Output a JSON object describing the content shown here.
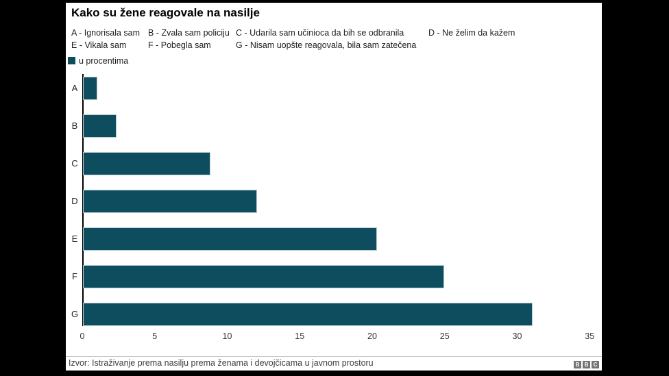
{
  "title": "Kako su žene reagovale na nasilje",
  "legend": {
    "rows": [
      [
        "A - Ignorisala sam",
        "B - Zvala sam policiju",
        "C - Udarila sam učinioca da bih se odbranila",
        "D - Ne želim da kažem"
      ],
      [
        "E - Vikala sam",
        "F - Pobegla sam",
        "G - Nisam uopšte reagovala, bila sam zatečena"
      ]
    ],
    "key_label": "u procentima"
  },
  "chart_data": {
    "type": "bar",
    "orientation": "horizontal",
    "title": "Kako su žene reagovale na nasilje",
    "unit_label": "u procentima",
    "categories": [
      "A",
      "B",
      "C",
      "D",
      "E",
      "F",
      "G"
    ],
    "category_descriptions": {
      "A": "Ignorisala sam",
      "B": "Zvala sam policiju",
      "C": "Udarila sam učinioca da bih se odbranila",
      "D": "Ne želim da kažem",
      "E": "Vikala sam",
      "F": "Pobegla sam",
      "G": "Nisam uopšte reagovala, bila sam zatečena"
    },
    "values": [
      1,
      2.3,
      8.8,
      12,
      20.3,
      24.9,
      31
    ],
    "xlim": [
      0,
      35
    ],
    "xticks": [
      0,
      5,
      10,
      15,
      20,
      25,
      30,
      35
    ],
    "grid": false,
    "legend_position": "top",
    "bar_color": "#0d4d5e"
  },
  "footer": {
    "source_label": "Izvor: Istraživanje prema nasilju prema ženama i devojčicama u javnom prostoru",
    "logo_letters": [
      "B",
      "B",
      "C"
    ]
  },
  "colors": {
    "background": "#000000",
    "panel": "#ffffff",
    "bar": "#0d4d5e"
  }
}
